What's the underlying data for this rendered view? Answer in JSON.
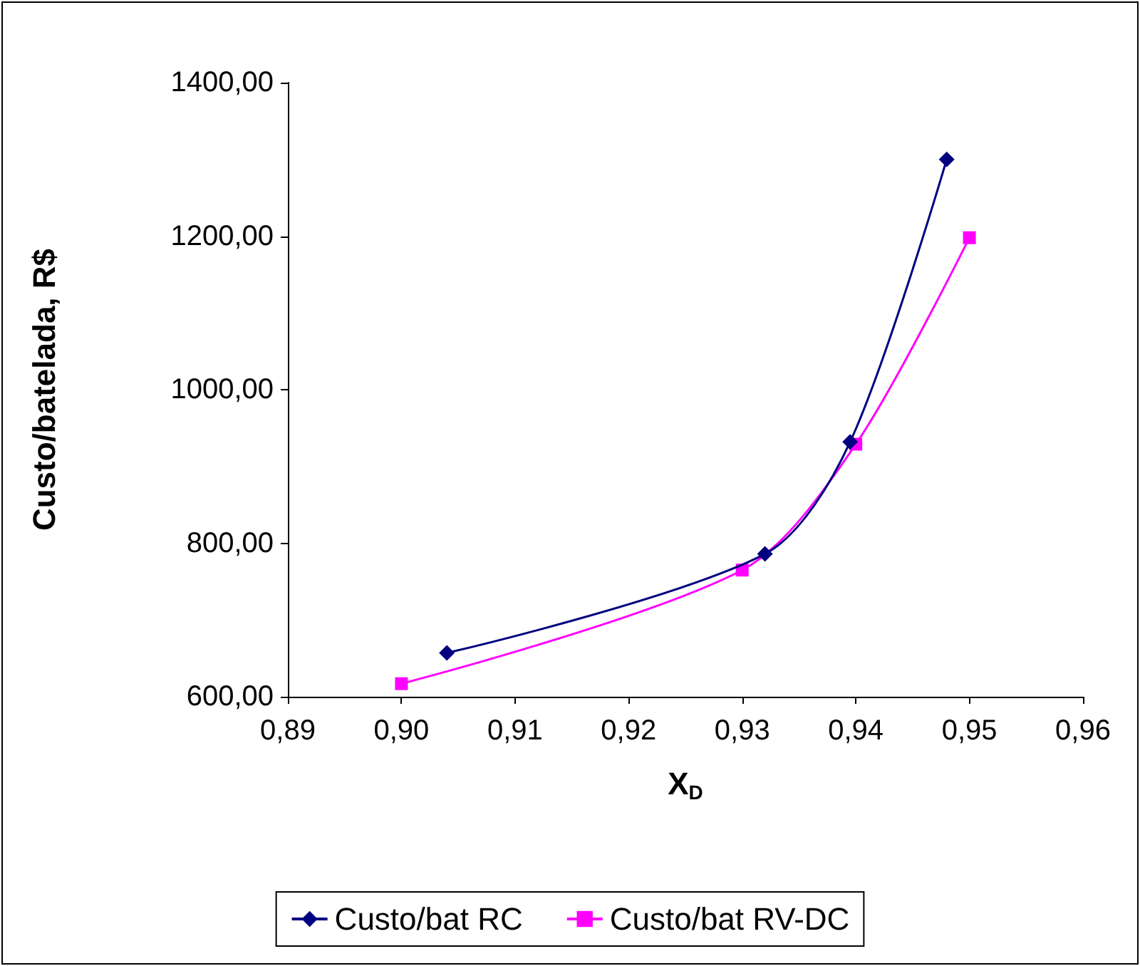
{
  "chart_data": {
    "type": "line",
    "xlabel": "X$_{D}$",
    "ylabel": "Custo/batelada, R$",
    "xlim": [
      0.89,
      0.96
    ],
    "xticks": [
      {
        "value": 0.89,
        "label": "0,89"
      },
      {
        "value": 0.9,
        "label": "0,90"
      },
      {
        "value": 0.91,
        "label": "0,91"
      },
      {
        "value": 0.92,
        "label": "0,92"
      },
      {
        "value": 0.93,
        "label": "0,93"
      },
      {
        "value": 0.94,
        "label": "0,94"
      },
      {
        "value": 0.95,
        "label": "0,95"
      },
      {
        "value": 0.96,
        "label": "0,96"
      }
    ],
    "ylim": [
      600,
      1400
    ],
    "yticks": [
      {
        "value": 600,
        "label": "600,00"
      },
      {
        "value": 800,
        "label": "800,00"
      },
      {
        "value": 1000,
        "label": "1000,00"
      },
      {
        "value": 1200,
        "label": "1200,00"
      },
      {
        "value": 1400,
        "label": "1400,00"
      }
    ],
    "series": [
      {
        "name": "Custo/bat RC",
        "color": "#000080",
        "marker": "diamond",
        "x": [
          0.904,
          0.932,
          0.9395,
          0.948
        ],
        "values": [
          657,
          786,
          932,
          1300
        ]
      },
      {
        "name": "Custo/bat RV-DC",
        "color": "#ff00ff",
        "marker": "square",
        "x": [
          0.9,
          0.93,
          0.94,
          0.95
        ],
        "values": [
          617,
          765,
          929,
          1198
        ]
      }
    ],
    "grid": false,
    "legend": "bottom"
  }
}
